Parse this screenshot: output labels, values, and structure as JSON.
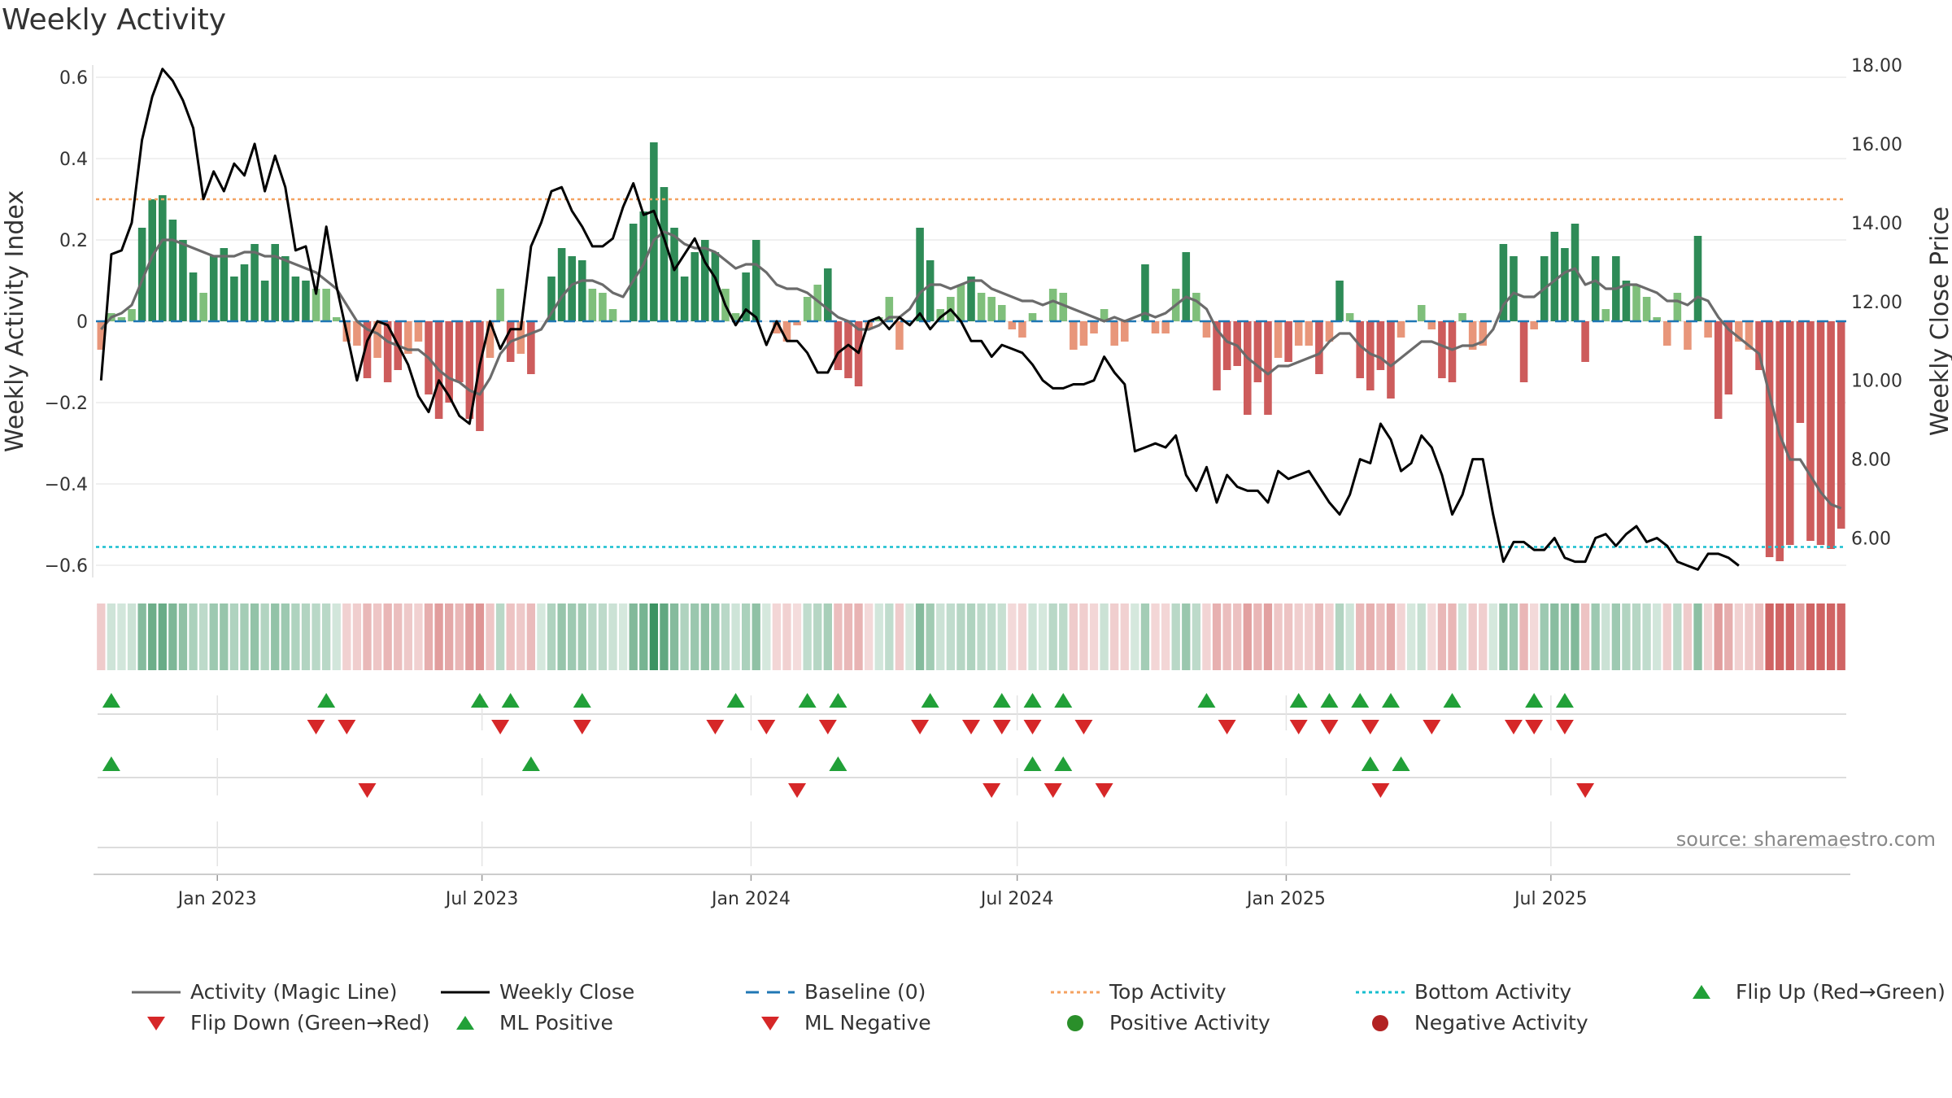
{
  "title": "Weekly Activity",
  "source": "source: sharemaestro.com",
  "colors": {
    "pos_strong": "#2e8b57",
    "pos_light": "#7fbf7b",
    "neg_strong": "#cd5c5c",
    "neg_light": "#e8967a",
    "magic_line": "#6b6b6b",
    "close_line": "#000000",
    "baseline": "#1f77b4",
    "top": "#f4a261",
    "bottom": "#17becf",
    "flip_up": "#21a038",
    "flip_down": "#d62728"
  },
  "chart_data": {
    "type": "bar",
    "start_date": "2022-10-10",
    "x_ticks": [
      "Jan 2023",
      "Jul 2023",
      "Jan 2024",
      "Jul 2024",
      "Jan 2025",
      "Jul 2025"
    ],
    "x_tick_dates": [
      "2023-01-01",
      "2023-07-01",
      "2024-01-01",
      "2024-07-01",
      "2025-01-01",
      "2025-07-01"
    ],
    "left_axis": {
      "label": "Weekly Activity Index",
      "ylim": [
        -0.63,
        0.63
      ],
      "ticks": [
        "0.6",
        "0.4",
        "0.2",
        "0",
        "−0.2",
        "−0.4",
        "−0.6"
      ],
      "tick_values": [
        0.6,
        0.4,
        0.2,
        0,
        -0.2,
        -0.4,
        -0.6
      ]
    },
    "right_axis": {
      "label": "Weekly Close Price",
      "ylim": [
        5.0,
        18.0
      ],
      "ticks": [
        "18.00",
        "16.00",
        "14.00",
        "12.00",
        "10.00",
        "8.00",
        "6.00"
      ],
      "tick_values": [
        18,
        16,
        14,
        12,
        10,
        8,
        6
      ]
    },
    "baseline": 0,
    "top_activity": 0.3,
    "bottom_activity": -0.555,
    "activity": [
      -0.07,
      0.02,
      0.01,
      0.03,
      0.23,
      0.3,
      0.31,
      0.25,
      0.2,
      0.12,
      0.07,
      0.16,
      0.18,
      0.11,
      0.14,
      0.19,
      0.1,
      0.19,
      0.16,
      0.11,
      0.1,
      0.08,
      0.08,
      0.01,
      -0.05,
      -0.06,
      -0.14,
      -0.09,
      -0.15,
      -0.12,
      -0.08,
      -0.05,
      -0.18,
      -0.24,
      -0.2,
      -0.15,
      -0.24,
      -0.27,
      -0.09,
      0.08,
      -0.1,
      -0.08,
      -0.13,
      0.0,
      0.11,
      0.18,
      0.16,
      0.15,
      0.08,
      0.07,
      0.03,
      0.0,
      0.24,
      0.27,
      0.44,
      0.33,
      0.23,
      0.11,
      0.17,
      0.2,
      0.17,
      0.08,
      0.02,
      0.12,
      0.2,
      0.0,
      -0.03,
      -0.05,
      -0.01,
      0.06,
      0.09,
      0.13,
      -0.12,
      -0.14,
      -0.16,
      -0.02,
      0.01,
      0.06,
      -0.07,
      0.0,
      0.23,
      0.15,
      0.03,
      0.06,
      0.09,
      0.11,
      0.07,
      0.06,
      0.04,
      -0.02,
      -0.04,
      0.02,
      0.0,
      0.08,
      0.07,
      -0.07,
      -0.06,
      -0.03,
      0.03,
      -0.06,
      -0.05,
      0.0,
      0.14,
      -0.03,
      -0.03,
      0.08,
      0.17,
      0.07,
      -0.04,
      -0.17,
      -0.12,
      -0.11,
      -0.23,
      -0.15,
      -0.23,
      -0.09,
      -0.1,
      -0.06,
      -0.06,
      -0.13,
      -0.05,
      0.1,
      0.02,
      -0.14,
      -0.17,
      -0.12,
      -0.19,
      -0.04,
      0.0,
      0.04,
      -0.02,
      -0.14,
      -0.15,
      0.02,
      -0.07,
      -0.06,
      0.0,
      0.19,
      0.16,
      -0.15,
      -0.02,
      0.16,
      0.22,
      0.18,
      0.24,
      -0.1,
      0.16,
      0.03,
      0.16,
      0.1,
      0.09,
      0.06,
      0.01,
      -0.06,
      0.07,
      -0.07,
      0.21,
      -0.04,
      -0.24,
      -0.18,
      -0.05,
      -0.07,
      -0.12,
      -0.58,
      -0.59,
      -0.55,
      -0.25,
      -0.54,
      -0.55,
      -0.56,
      -0.51
    ],
    "magic_line": [
      -0.02,
      0.01,
      0.02,
      0.04,
      0.1,
      0.16,
      0.2,
      0.2,
      0.19,
      0.18,
      0.17,
      0.16,
      0.16,
      0.16,
      0.17,
      0.17,
      0.16,
      0.16,
      0.15,
      0.14,
      0.13,
      0.12,
      0.1,
      0.08,
      0.04,
      0.0,
      -0.02,
      -0.03,
      -0.05,
      -0.06,
      -0.07,
      -0.07,
      -0.09,
      -0.12,
      -0.14,
      -0.15,
      -0.17,
      -0.18,
      -0.14,
      -0.08,
      -0.05,
      -0.04,
      -0.03,
      -0.02,
      0.02,
      0.06,
      0.09,
      0.1,
      0.1,
      0.09,
      0.07,
      0.06,
      0.1,
      0.14,
      0.2,
      0.22,
      0.21,
      0.19,
      0.18,
      0.18,
      0.17,
      0.15,
      0.13,
      0.14,
      0.14,
      0.12,
      0.09,
      0.08,
      0.08,
      0.07,
      0.05,
      0.03,
      0.01,
      0.0,
      -0.02,
      -0.02,
      -0.01,
      0.01,
      0.01,
      0.03,
      0.07,
      0.09,
      0.09,
      0.08,
      0.09,
      0.1,
      0.1,
      0.08,
      0.07,
      0.06,
      0.05,
      0.05,
      0.04,
      0.05,
      0.04,
      0.03,
      0.02,
      0.01,
      0.0,
      0.01,
      0.0,
      0.01,
      0.02,
      0.01,
      0.02,
      0.04,
      0.06,
      0.05,
      0.03,
      -0.02,
      -0.05,
      -0.06,
      -0.09,
      -0.11,
      -0.13,
      -0.11,
      -0.11,
      -0.1,
      -0.09,
      -0.08,
      -0.05,
      -0.03,
      -0.03,
      -0.06,
      -0.08,
      -0.09,
      -0.11,
      -0.09,
      -0.07,
      -0.05,
      -0.05,
      -0.06,
      -0.07,
      -0.06,
      -0.06,
      -0.05,
      -0.02,
      0.04,
      0.07,
      0.06,
      0.06,
      0.08,
      0.1,
      0.12,
      0.13,
      0.09,
      0.1,
      0.08,
      0.08,
      0.09,
      0.09,
      0.08,
      0.07,
      0.05,
      0.05,
      0.04,
      0.06,
      0.05,
      0.01,
      -0.02,
      -0.04,
      -0.06,
      -0.08,
      -0.18,
      -0.28,
      -0.34,
      -0.34,
      -0.38,
      -0.42,
      -0.45,
      -0.46
    ],
    "weekly_close": [
      10.0,
      13.2,
      13.3,
      14.0,
      16.1,
      17.2,
      17.9,
      17.6,
      17.1,
      16.4,
      14.6,
      15.3,
      14.8,
      15.5,
      15.2,
      16.0,
      14.8,
      15.7,
      14.9,
      13.3,
      13.4,
      12.2,
      13.9,
      12.4,
      11.2,
      10.0,
      11.0,
      11.5,
      11.4,
      10.9,
      10.4,
      9.6,
      9.2,
      10.0,
      9.6,
      9.1,
      8.9,
      10.4,
      11.5,
      10.8,
      11.3,
      11.3,
      13.4,
      14.0,
      14.8,
      14.9,
      14.3,
      13.9,
      13.4,
      13.4,
      13.6,
      14.4,
      15.0,
      14.2,
      14.3,
      13.6,
      12.8,
      13.2,
      13.6,
      13.0,
      12.6,
      11.9,
      11.4,
      11.8,
      11.6,
      10.9,
      11.5,
      11.0,
      11.0,
      10.7,
      10.2,
      10.2,
      10.7,
      10.9,
      10.7,
      11.5,
      11.6,
      11.3,
      11.6,
      11.4,
      11.7,
      11.3,
      11.6,
      11.8,
      11.5,
      11.0,
      11.0,
      10.6,
      10.9,
      10.8,
      10.7,
      10.4,
      10.0,
      9.8,
      9.8,
      9.9,
      9.9,
      10.0,
      10.6,
      10.2,
      9.9,
      8.2,
      8.3,
      8.4,
      8.3,
      8.6,
      7.6,
      7.2,
      7.8,
      6.9,
      7.6,
      7.3,
      7.2,
      7.2,
      6.9,
      7.7,
      7.5,
      7.6,
      7.7,
      7.3,
      6.9,
      6.6,
      7.1,
      8.0,
      7.9,
      8.9,
      8.5,
      7.7,
      7.9,
      8.6,
      8.3,
      7.6,
      6.6,
      7.1,
      8.0,
      8.0,
      6.6,
      5.4,
      5.9,
      5.9,
      5.7,
      5.7,
      6.0,
      5.5,
      5.4,
      5.4,
      6.0,
      6.1,
      5.8,
      6.1,
      6.3,
      5.9,
      6.0,
      5.8,
      5.4,
      5.3,
      5.2,
      5.6,
      5.6,
      5.5,
      5.3
    ],
    "flip_up": [
      1,
      22,
      37,
      40,
      47,
      62,
      69,
      72,
      81,
      88,
      91,
      94,
      108,
      117,
      120,
      123,
      126,
      132,
      140,
      143
    ],
    "flip_down": [
      21,
      24,
      39,
      47,
      60,
      65,
      71,
      80,
      85,
      88,
      91,
      96,
      110,
      117,
      120,
      124,
      130,
      138,
      140,
      143
    ],
    "ml_positive": [
      1,
      42,
      72,
      91,
      94,
      124,
      127
    ],
    "ml_negative": [
      26,
      68,
      87,
      93,
      98,
      125,
      145
    ]
  },
  "legend": [
    {
      "label": "Activity (Magic Line)",
      "symbol": "line-gray"
    },
    {
      "label": "Weekly Close",
      "symbol": "line-black"
    },
    {
      "label": "Baseline (0)",
      "symbol": "dash-blue"
    },
    {
      "label": "Top Activity",
      "symbol": "dot-orange"
    },
    {
      "label": "Bottom Activity",
      "symbol": "dot-cyan"
    },
    {
      "label": "Flip Up (Red→Green)",
      "symbol": "tri-up"
    },
    {
      "label": "Flip Down (Green→Red)",
      "symbol": "tri-down"
    },
    {
      "label": "ML Positive",
      "symbol": "tri-up"
    },
    {
      "label": "ML Negative",
      "symbol": "tri-down"
    },
    {
      "label": "Positive Activity",
      "symbol": "circle-green"
    },
    {
      "label": "Negative Activity",
      "symbol": "circle-red"
    }
  ]
}
